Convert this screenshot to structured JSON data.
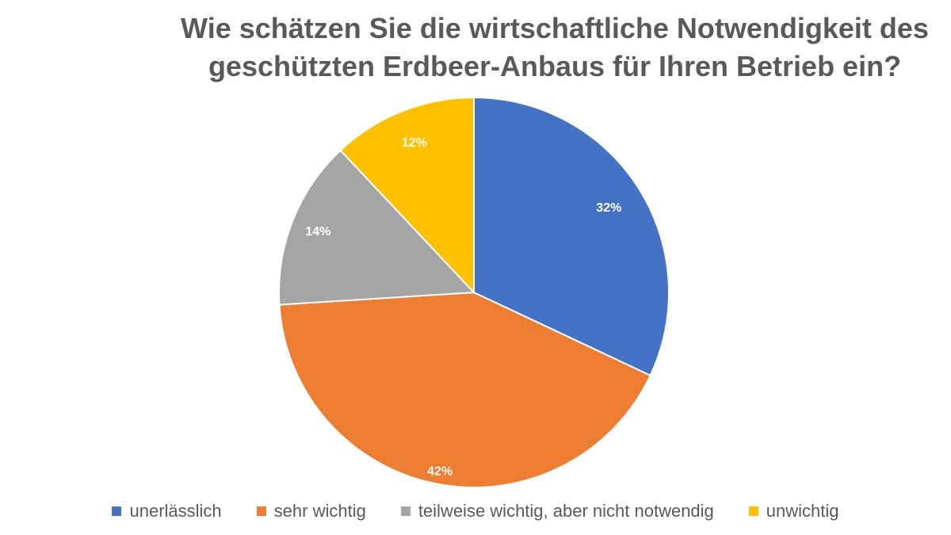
{
  "chart_data": {
    "type": "pie",
    "title_lines": [
      "Wie schätzen Sie die wirtschaftliche Notwendigkeit des",
      "geschützten Erdbeer-Anbaus für Ihren Betrieb ein?"
    ],
    "categories": [
      "unerlässlich",
      "sehr wichtig",
      "teilweise wichtig, aber nicht notwendig",
      "unwichtig"
    ],
    "values": [
      32,
      42,
      14,
      12
    ],
    "labels": [
      "32%",
      "42%",
      "14%",
      "12%"
    ],
    "colors": [
      "#4472C4",
      "#ED7D31",
      "#A5A5A5",
      "#FFC000"
    ],
    "legend_position": "bottom"
  }
}
